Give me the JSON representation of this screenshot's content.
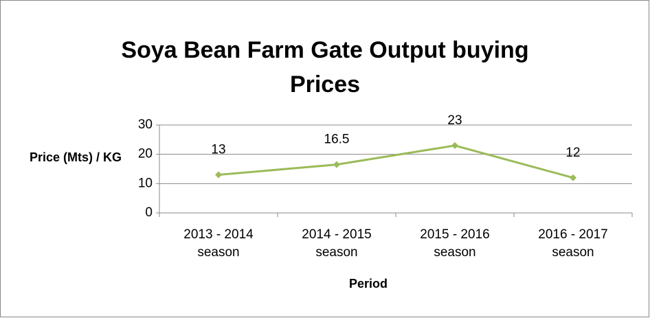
{
  "chart_data": {
    "type": "line",
    "title": "Soya Bean Farm Gate Output buying Prices",
    "x_label": "Period",
    "y_label": "Price (Mts) / KG",
    "categories": [
      "2013 - 2014 season",
      "2014 - 2015 season",
      "2015 - 2016 season",
      "2016 - 2017 season"
    ],
    "values": [
      13,
      16.5,
      23,
      12
    ],
    "color": "#9bbb59",
    "ylim": [
      0,
      30
    ],
    "yticks": [
      0,
      10,
      20,
      30
    ],
    "grid": true
  }
}
